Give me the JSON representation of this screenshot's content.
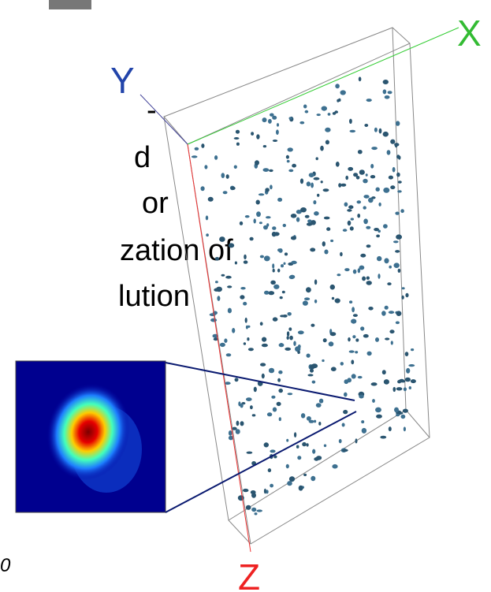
{
  "text_lines": [
    "-",
    "d",
    "or",
    "zation of",
    "lution"
  ],
  "axes": {
    "x": "X",
    "y": "Y",
    "z": "Z"
  },
  "footnote": "0"
}
